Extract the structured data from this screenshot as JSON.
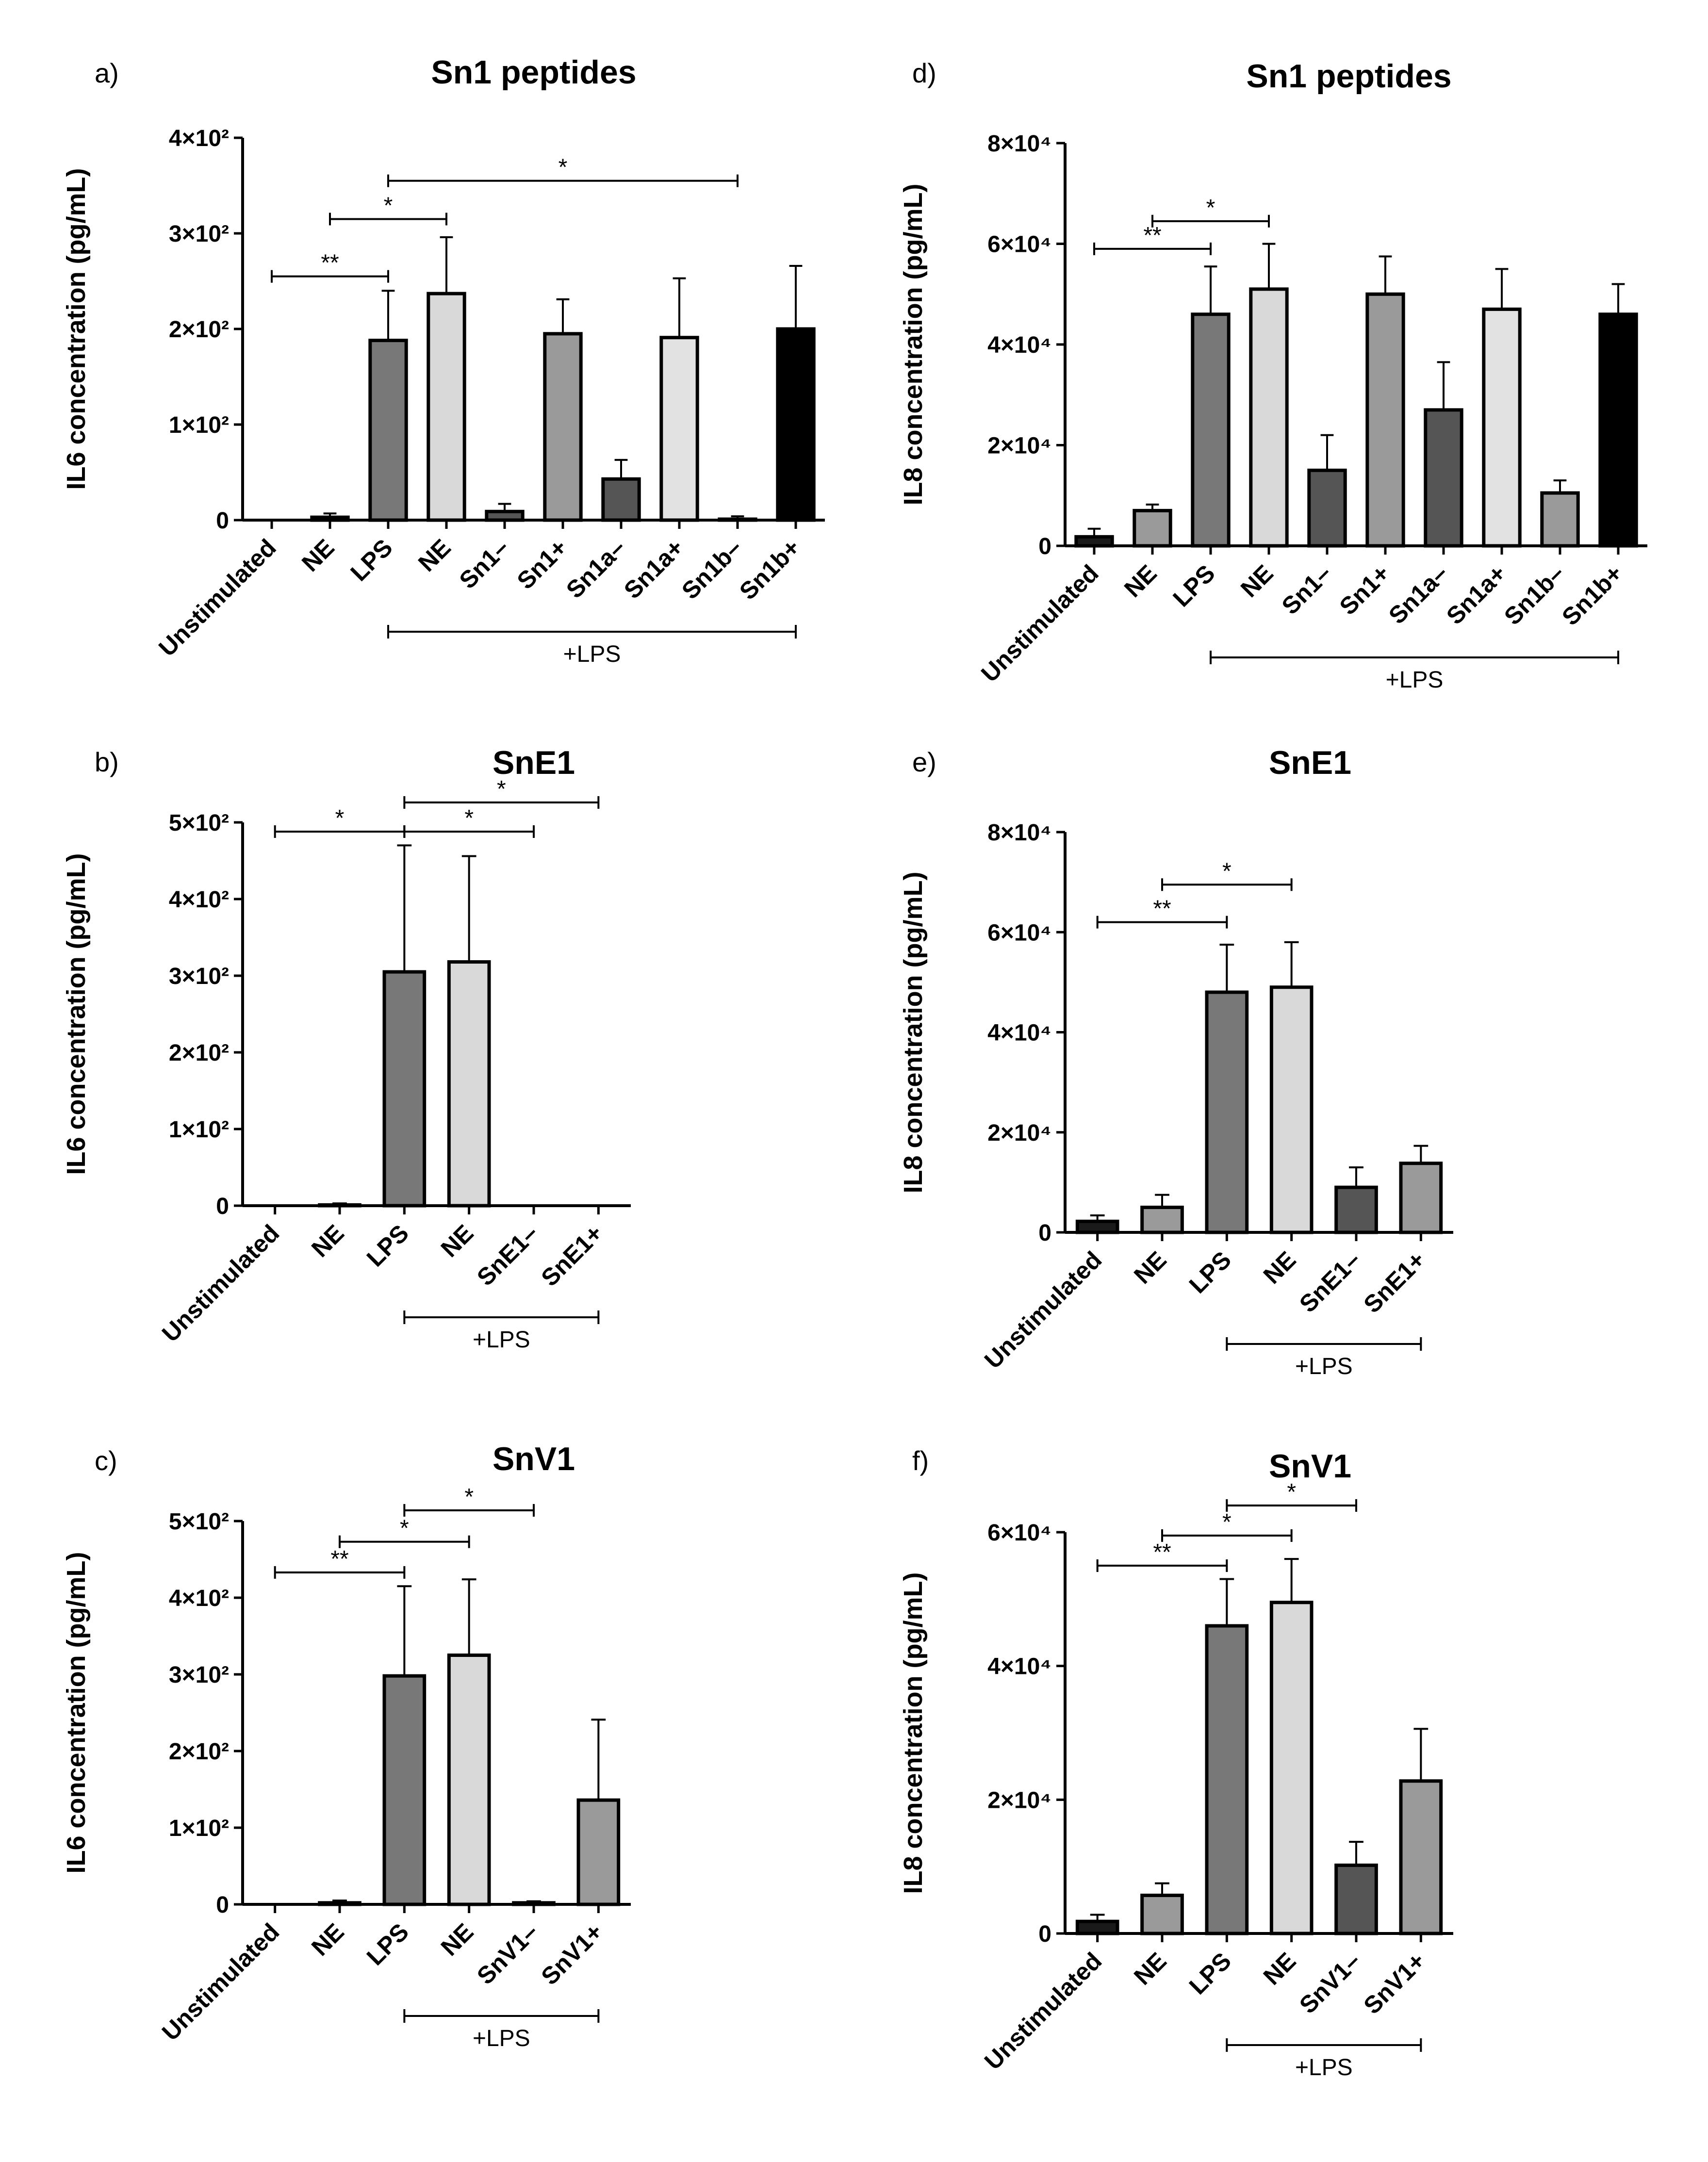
{
  "chart_data": [
    {
      "id": "a",
      "type": "bar",
      "panel_label": "a)",
      "title": "Sn1 peptides",
      "ylabel": "IL6 concentration (pg/mL)",
      "ylim": [
        0,
        400
      ],
      "yticks": [
        0,
        100,
        200,
        300,
        400
      ],
      "ytick_labels": [
        "0",
        "1×10²",
        "2×10²",
        "3×10²",
        "4×10²"
      ],
      "categories": [
        "Unstimulated",
        "NE",
        "LPS",
        "NE",
        "Sn1–",
        "Sn1+",
        "Sn1a–",
        "Sn1a+",
        "Sn1b–",
        "Sn1b+"
      ],
      "values": [
        0,
        3,
        188,
        237,
        9,
        195,
        43,
        191,
        1,
        200
      ],
      "errors": [
        0,
        4,
        52,
        59,
        8,
        36,
        20,
        62,
        3,
        66
      ],
      "colors": [
        "#1a1a1a",
        "#9a9a9a",
        "#787878",
        "#d9d9d9",
        "#555555",
        "#9a9a9a",
        "#555555",
        "#e2e2e2",
        "#9a9a9a",
        "#000000"
      ],
      "group_label": "+LPS",
      "group_range": [
        2,
        9
      ],
      "significance": [
        {
          "from": 0,
          "to": 2,
          "label": "**",
          "value": 255
        },
        {
          "from": 1,
          "to": 3,
          "label": "*",
          "value": 315
        },
        {
          "from": 2,
          "to": 8,
          "label": "*",
          "value": 355
        }
      ]
    },
    {
      "id": "b",
      "type": "bar",
      "panel_label": "b)",
      "title": "SnE1",
      "ylabel": "IL6 concentration (pg/mL)",
      "ylim": [
        0,
        500
      ],
      "yticks": [
        0,
        100,
        200,
        300,
        400,
        500
      ],
      "ytick_labels": [
        "0",
        "1×10²",
        "2×10²",
        "3×10²",
        "4×10²",
        "5×10²"
      ],
      "categories": [
        "Unstimulated",
        "NE",
        "LPS",
        "NE",
        "SnE1–",
        "SnE1+"
      ],
      "values": [
        0,
        1,
        305,
        318,
        0,
        0
      ],
      "errors": [
        0,
        2,
        165,
        138,
        0,
        0
      ],
      "colors": [
        "#1a1a1a",
        "#9a9a9a",
        "#787878",
        "#d9d9d9",
        "#555555",
        "#9a9a9a"
      ],
      "group_label": "+LPS",
      "group_range": [
        2,
        5
      ],
      "significance": [
        {
          "from": 0,
          "to": 2,
          "label": "*",
          "value": 488
        },
        {
          "from": 2,
          "to": 4,
          "label": "*",
          "value": 488
        },
        {
          "from": 2,
          "to": 5,
          "label": "*",
          "value": 526
        }
      ]
    },
    {
      "id": "c",
      "type": "bar",
      "panel_label": "c)",
      "title": "SnV1",
      "ylabel": "IL6 concentration (pg/mL)",
      "ylim": [
        0,
        500
      ],
      "yticks": [
        0,
        100,
        200,
        300,
        400,
        500
      ],
      "ytick_labels": [
        "0",
        "1×10²",
        "2×10²",
        "3×10²",
        "4×10²",
        "5×10²"
      ],
      "categories": [
        "Unstimulated",
        "NE",
        "LPS",
        "NE",
        "SnV1–",
        "SnV1+"
      ],
      "values": [
        0,
        2,
        298,
        325,
        2,
        136
      ],
      "errors": [
        0,
        3,
        117,
        99,
        2,
        105
      ],
      "colors": [
        "#1a1a1a",
        "#9a9a9a",
        "#787878",
        "#d9d9d9",
        "#555555",
        "#9a9a9a"
      ],
      "group_label": "+LPS",
      "group_range": [
        2,
        5
      ],
      "significance": [
        {
          "from": 0,
          "to": 2,
          "label": "**",
          "value": 433
        },
        {
          "from": 1,
          "to": 3,
          "label": "*",
          "value": 473
        },
        {
          "from": 2,
          "to": 4,
          "label": "*",
          "value": 514
        }
      ]
    },
    {
      "id": "d",
      "type": "bar",
      "panel_label": "d)",
      "title": "Sn1 peptides",
      "ylabel": "IL8 concentration (pg/mL)",
      "ylim": [
        0,
        80000
      ],
      "yticks": [
        0,
        20000,
        40000,
        60000,
        80000
      ],
      "ytick_labels": [
        "0",
        "2×10⁴",
        "4×10⁴",
        "6×10⁴",
        "8×10⁴"
      ],
      "categories": [
        "Unstimulated",
        "NE",
        "LPS",
        "NE",
        "Sn1–",
        "Sn1+",
        "Sn1a–",
        "Sn1a+",
        "Sn1b–",
        "Sn1b+"
      ],
      "values": [
        1800,
        7000,
        46000,
        51000,
        15000,
        50000,
        27000,
        47000,
        10500,
        46000
      ],
      "errors": [
        1600,
        1200,
        9500,
        9000,
        7000,
        7500,
        9500,
        8000,
        2500,
        6000
      ],
      "colors": [
        "#1a1a1a",
        "#9a9a9a",
        "#787878",
        "#d9d9d9",
        "#555555",
        "#9a9a9a",
        "#555555",
        "#e2e2e2",
        "#9a9a9a",
        "#000000"
      ],
      "group_label": "+LPS",
      "group_range": [
        2,
        9
      ],
      "significance": [
        {
          "from": 0,
          "to": 2,
          "label": "**",
          "value": 59000
        },
        {
          "from": 1,
          "to": 3,
          "label": "*",
          "value": 64500
        }
      ]
    },
    {
      "id": "e",
      "type": "bar",
      "panel_label": "e)",
      "title": "SnE1",
      "ylabel": "IL8 concentration (pg/mL)",
      "ylim": [
        0,
        80000
      ],
      "yticks": [
        0,
        20000,
        40000,
        60000,
        80000
      ],
      "ytick_labels": [
        "0",
        "2×10⁴",
        "4×10⁴",
        "6×10⁴",
        "8×10⁴"
      ],
      "categories": [
        "Unstimulated",
        "NE",
        "LPS",
        "NE",
        "SnE1–",
        "SnE1+"
      ],
      "values": [
        2200,
        5000,
        48000,
        49000,
        9000,
        13800
      ],
      "errors": [
        1200,
        2500,
        9500,
        9000,
        4000,
        3500
      ],
      "colors": [
        "#1a1a1a",
        "#9a9a9a",
        "#787878",
        "#d9d9d9",
        "#555555",
        "#9a9a9a"
      ],
      "group_label": "+LPS",
      "group_range": [
        2,
        5
      ],
      "significance": [
        {
          "from": 0,
          "to": 2,
          "label": "**",
          "value": 62000
        },
        {
          "from": 1,
          "to": 3,
          "label": "*",
          "value": 69500
        }
      ]
    },
    {
      "id": "f",
      "type": "bar",
      "panel_label": "f)",
      "title": "SnV1",
      "ylabel": "IL8 concentration (pg/mL)",
      "ylim": [
        0,
        60000
      ],
      "yticks": [
        0,
        20000,
        40000,
        60000
      ],
      "ytick_labels": [
        "0",
        "2×10⁴",
        "4×10⁴",
        "6×10⁴"
      ],
      "categories": [
        "Unstimulated",
        "NE",
        "LPS",
        "NE",
        "SnV1–",
        "SnV1+"
      ],
      "values": [
        1800,
        5700,
        46000,
        49500,
        10200,
        22800
      ],
      "errors": [
        1000,
        1800,
        7000,
        6500,
        3500,
        7800
      ],
      "colors": [
        "#1a1a1a",
        "#9a9a9a",
        "#787878",
        "#d9d9d9",
        "#555555",
        "#9a9a9a"
      ],
      "group_label": "+LPS",
      "group_range": [
        2,
        5
      ],
      "significance": [
        {
          "from": 0,
          "to": 2,
          "label": "**",
          "value": 55000
        },
        {
          "from": 1,
          "to": 3,
          "label": "*",
          "value": 59500
        },
        {
          "from": 2,
          "to": 4,
          "label": "*",
          "value": 64000
        }
      ]
    }
  ]
}
